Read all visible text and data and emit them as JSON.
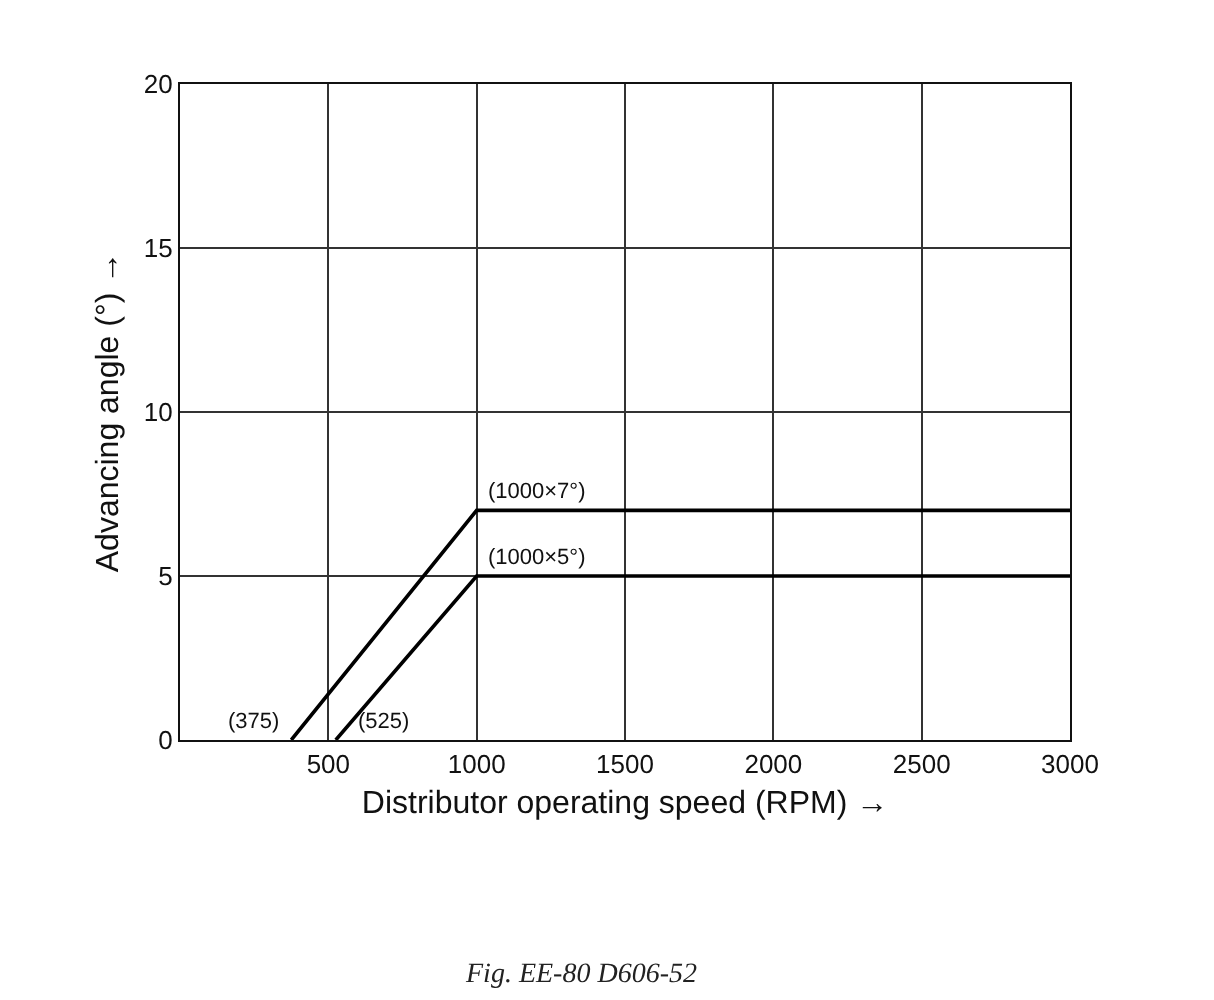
{
  "chart_data": {
    "type": "line",
    "xlabel": "Distributor operating speed (RPM) →",
    "ylabel": "Advancing angle (°) →",
    "series": [
      {
        "color": "#000000",
        "x": [
          375,
          1000,
          3000
        ],
        "values": [
          0,
          7,
          7
        ]
      },
      {
        "color": "#000000",
        "x": [
          525,
          1000,
          3000
        ],
        "values": [
          0,
          5,
          5
        ]
      }
    ],
    "xlim": [
      0,
      3000
    ],
    "xticks": [
      500,
      1000,
      1500,
      2000,
      2500,
      3000
    ],
    "ylim": [
      0,
      20
    ],
    "yticks": [
      0,
      5,
      10,
      15,
      20
    ],
    "grid": true,
    "marker": "none",
    "line_style": "solid",
    "annotations": [
      {
        "text": "(375)",
        "x": 375,
        "y": 0
      },
      {
        "text": "(525)",
        "x": 525,
        "y": 0
      },
      {
        "text": "(1000×7°)",
        "x": 1000,
        "y": 7
      },
      {
        "text": "(1000×5°)",
        "x": 1000,
        "y": 5
      },
      "Fig. EE-80 D606-52"
    ]
  }
}
